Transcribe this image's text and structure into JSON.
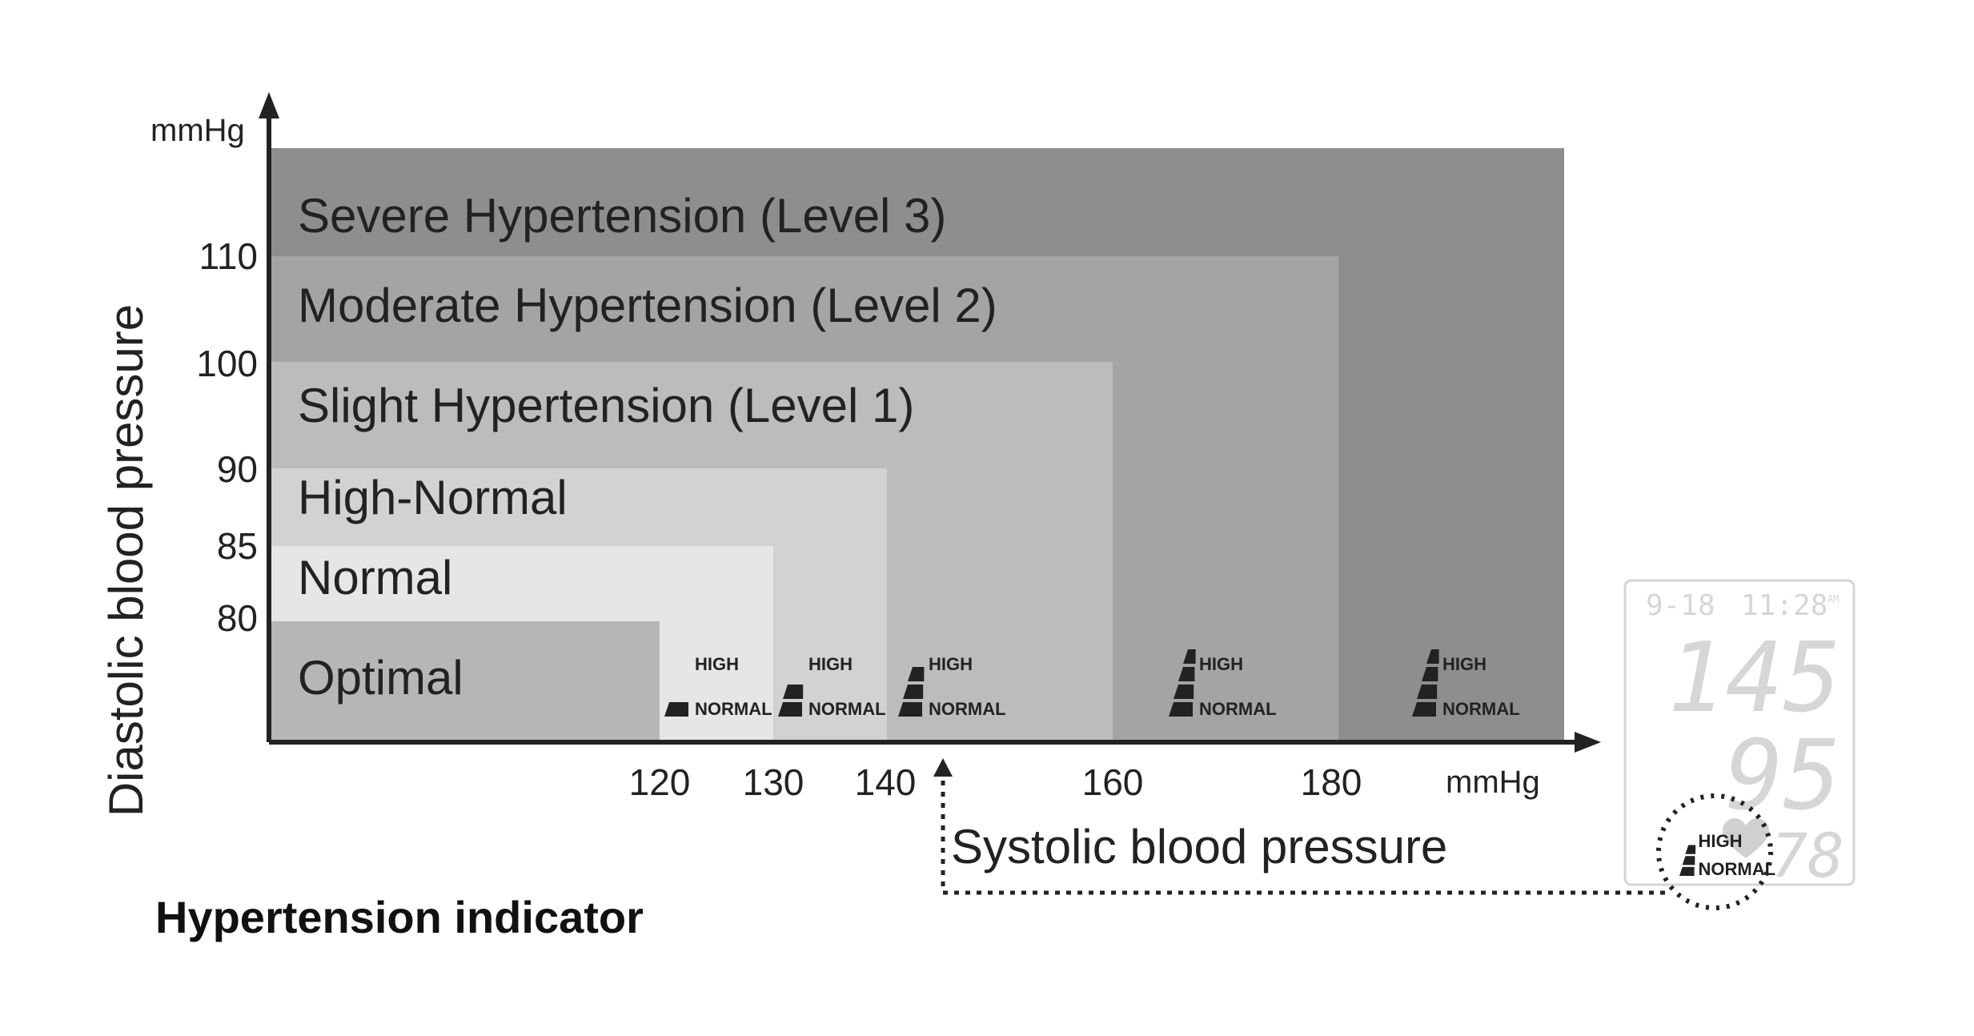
{
  "caption": "Hypertension indicator",
  "axes": {
    "y_title": "Diastolic blood pressure",
    "y_unit": "mmHg",
    "x_title": "Systolic blood pressure",
    "x_unit": "mmHg"
  },
  "chart_data": {
    "type": "nested-zones",
    "title": "",
    "xlabel": "Systolic blood pressure",
    "ylabel": "Diastolic blood pressure",
    "x_unit": "mmHg",
    "y_unit": "mmHg",
    "x_ticks": [
      "120",
      "130",
      "140",
      "160",
      "180"
    ],
    "y_ticks": [
      "110",
      "100",
      "90",
      "85",
      "80"
    ],
    "zones": [
      {
        "label": "Severe Hypertension (Level 3)",
        "systolic_max": null,
        "diastolic_max": null,
        "color": "#8e8e90"
      },
      {
        "label": "Moderate Hypertension (Level 2)",
        "systolic_max": 180,
        "diastolic_max": 110,
        "color": "#a4a4a6"
      },
      {
        "label": "Slight Hypertension (Level 1)",
        "systolic_max": 160,
        "diastolic_max": 100,
        "color": "#bcbcbe"
      },
      {
        "label": "High-Normal",
        "systolic_max": 140,
        "diastolic_max": 90,
        "color": "#d2d2d4"
      },
      {
        "label": "Normal",
        "systolic_max": 130,
        "diastolic_max": 85,
        "color": "#e6e6e6"
      },
      {
        "label": "Optimal",
        "systolic_max": 120,
        "diastolic_max": 80,
        "color": "#b6b6b8"
      }
    ]
  },
  "indicators": [
    {
      "high": "HIGH",
      "normal": "NORMAL",
      "level": 1
    },
    {
      "high": "HIGH",
      "normal": "NORMAL",
      "level": 2
    },
    {
      "high": "HIGH",
      "normal": "NORMAL",
      "level": 3
    },
    {
      "high": "HIGH",
      "normal": "NORMAL",
      "level": 4
    },
    {
      "high": "HIGH",
      "normal": "NORMAL",
      "level": 5
    }
  ],
  "display": {
    "date": "9-18",
    "time": "11:28",
    "ampm": "AM",
    "systolic": "145",
    "diastolic": "95",
    "pulse": "78",
    "indicator_high": "HIGH",
    "indicator_normal": "NORMAL"
  }
}
